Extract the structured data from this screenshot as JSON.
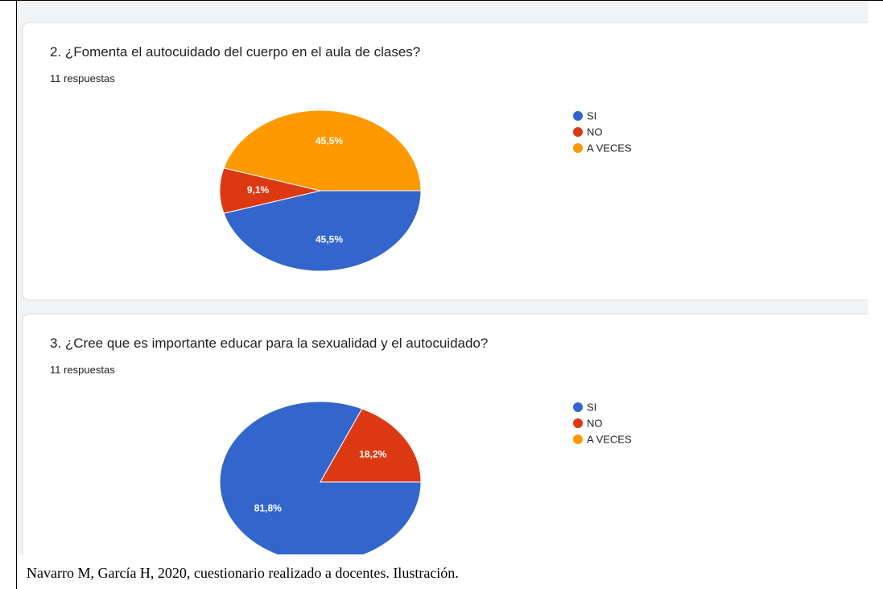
{
  "chart_data": [
    {
      "type": "pie",
      "title": "2. ¿Fomenta el autocuidado del cuerpo en el aula de clases?",
      "subtitle": "11 respuestas",
      "categories": [
        "SI",
        "NO",
        "A VECES"
      ],
      "values": [
        45.5,
        9.1,
        45.5
      ],
      "value_labels": [
        "45,5%",
        "9,1%",
        "45,5%"
      ],
      "colors": [
        "#3366cc",
        "#dc3912",
        "#ff9900"
      ],
      "legend": "right"
    },
    {
      "type": "pie",
      "title": "3. ¿Cree que es importante educar para la sexualidad y el autocuidado?",
      "subtitle": "11 respuestas",
      "categories": [
        "SI",
        "NO",
        "A VECES"
      ],
      "values": [
        81.8,
        18.2,
        0
      ],
      "value_labels": [
        "81,8%",
        "18,2%",
        null
      ],
      "colors": [
        "#3366cc",
        "#dc3912",
        "#ff9900"
      ],
      "legend": "right"
    }
  ],
  "caption": "Navarro M, García H, 2020, cuestionario realizado a docentes. Ilustración."
}
